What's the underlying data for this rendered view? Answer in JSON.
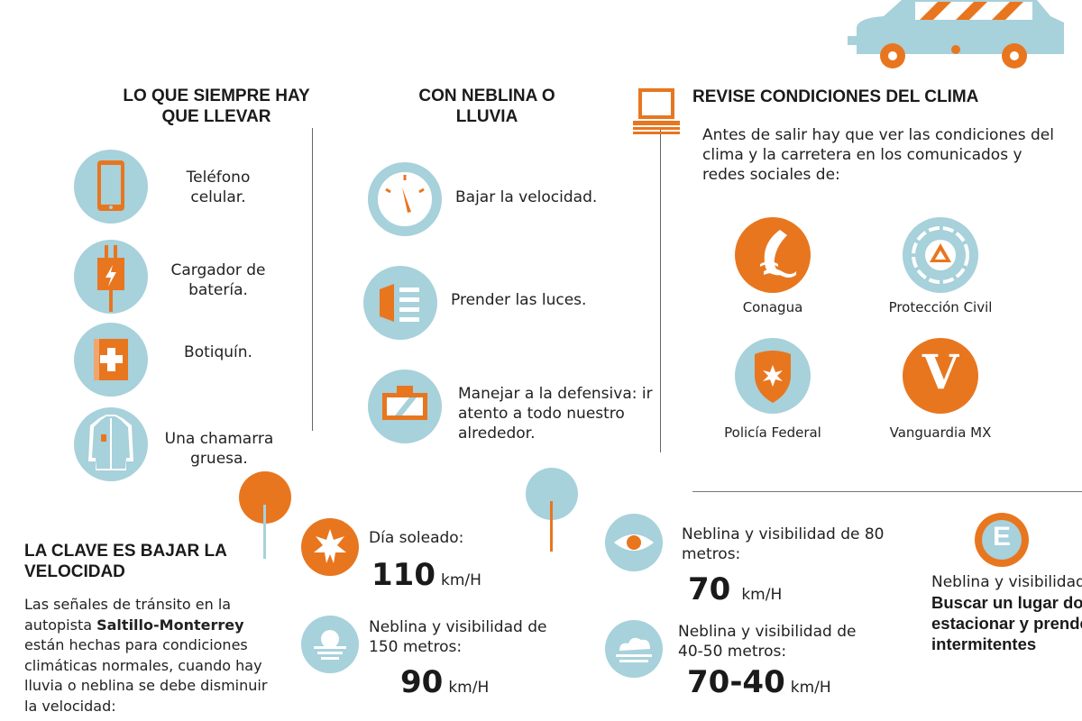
{
  "colors": {
    "orange": "#e8761f",
    "blue": "#a7d1db",
    "dark": "#1a1a1a"
  },
  "col1": {
    "title": "LO QUE SIEMPRE HAY QUE LLEVAR",
    "items": [
      {
        "icon": "cellphone-icon",
        "label": "Teléfono celular."
      },
      {
        "icon": "battery-charger-icon",
        "label": "Cargador de batería."
      },
      {
        "icon": "first-aid-kit-icon",
        "label": "Botiquín."
      },
      {
        "icon": "jacket-icon",
        "label": "Una chamarra gruesa."
      }
    ]
  },
  "col2": {
    "title": "CON NEBLINA O LLUVIA",
    "items": [
      {
        "icon": "speedometer-icon",
        "label": "Bajar la velocidad."
      },
      {
        "icon": "headlight-icon",
        "label": "Prender las luces."
      },
      {
        "icon": "windshield-icon",
        "label": "Manejar a la defensiva: ir atento a todo nuestro alrededor."
      }
    ]
  },
  "col3": {
    "title": "REVISE CONDICIONES DEL CLIMA",
    "intro": "Antes de salir hay que ver las condiciones del clima y la carretera en los comunicados y redes sociales de:",
    "sources": [
      {
        "icon": "conagua-logo-icon",
        "label": "Conagua"
      },
      {
        "icon": "proteccion-civil-logo-icon",
        "label": "Protección Civil"
      },
      {
        "icon": "policia-federal-badge-icon",
        "label": "Policía Federal"
      },
      {
        "icon": "vanguardia-logo-icon",
        "label": "Vanguardia MX",
        "letter": "V"
      }
    ]
  },
  "speed": {
    "title": "LA CLAVE ES BAJAR LA VELOCIDAD",
    "body_1": "Las señales de tránsito en la autopista ",
    "body_bold": "Saltillo-Monterrey",
    "body_2": " están hechas para condiciones climáticas normales, cuando hay lluvia o neblina se debe disminuir la velocidad:",
    "unit": "km/H",
    "conditions": [
      {
        "icon": "sun-icon",
        "label": "Día soleado:",
        "speed": "110"
      },
      {
        "icon": "fog-icon",
        "label": "Neblina y visibilidad de 150 metros:",
        "speed": "90"
      },
      {
        "icon": "eye-icon",
        "label": "Neblina y visibilidad de 80 metros:",
        "speed": "70"
      },
      {
        "icon": "cloud-icon",
        "label": "Neblina y visibilidad de 40-50 metros:",
        "speed": "70-40"
      }
    ],
    "null_visibility": {
      "icon": "parking-e-icon",
      "letter": "E",
      "label": "Neblina y visibilidad nula",
      "action": "Buscar un lugar donde estacionar y prender intermitentes"
    }
  }
}
